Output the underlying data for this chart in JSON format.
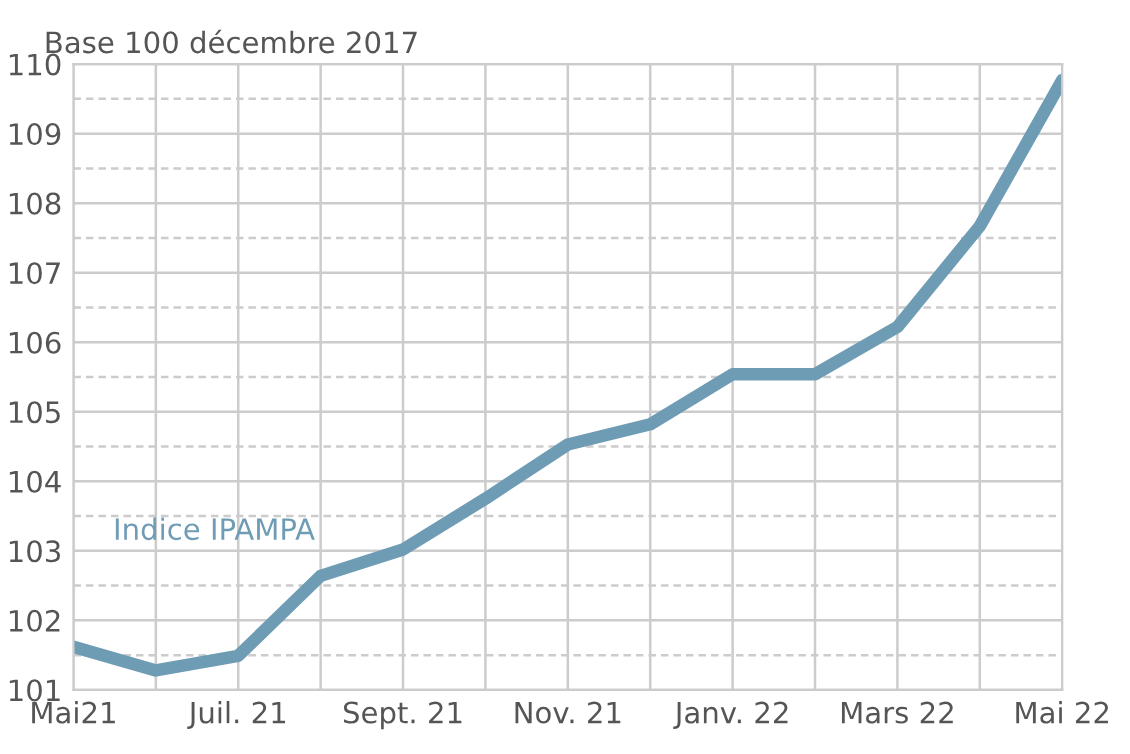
{
  "chart_data": {
    "type": "line",
    "title": "Base 100 décembre 2017",
    "categories": [
      "Mai21",
      null,
      "Juil. 21",
      null,
      "Sept. 21",
      null,
      "Nov. 21",
      null,
      "Janv. 22",
      null,
      "Mars 22",
      null,
      "Mai 22"
    ],
    "series": [
      {
        "name": "Indice IPAMPA",
        "color": "#6f9cb5",
        "values": [
          101.62,
          101.28,
          101.49,
          102.64,
          103.02,
          103.75,
          104.53,
          104.82,
          105.54,
          105.54,
          106.22,
          107.67,
          109.77
        ]
      }
    ],
    "ylim": [
      101,
      110
    ],
    "yticks": [
      101,
      {
        "value": 101.5,
        "label": null
      },
      102,
      {
        "value": 102.5,
        "label": null
      },
      103,
      {
        "value": 103.5,
        "label": null
      },
      104,
      {
        "value": 104.5,
        "label": null
      },
      105,
      {
        "value": 105.5,
        "label": null
      },
      106,
      {
        "value": 106.5,
        "label": null
      },
      107,
      {
        "value": 107.5,
        "label": null
      },
      108,
      {
        "value": 108.5,
        "label": null
      },
      109,
      {
        "value": 109.5,
        "label": null
      },
      110
    ],
    "grid": true,
    "legend": false,
    "marker": "none",
    "line_style": "solid"
  }
}
